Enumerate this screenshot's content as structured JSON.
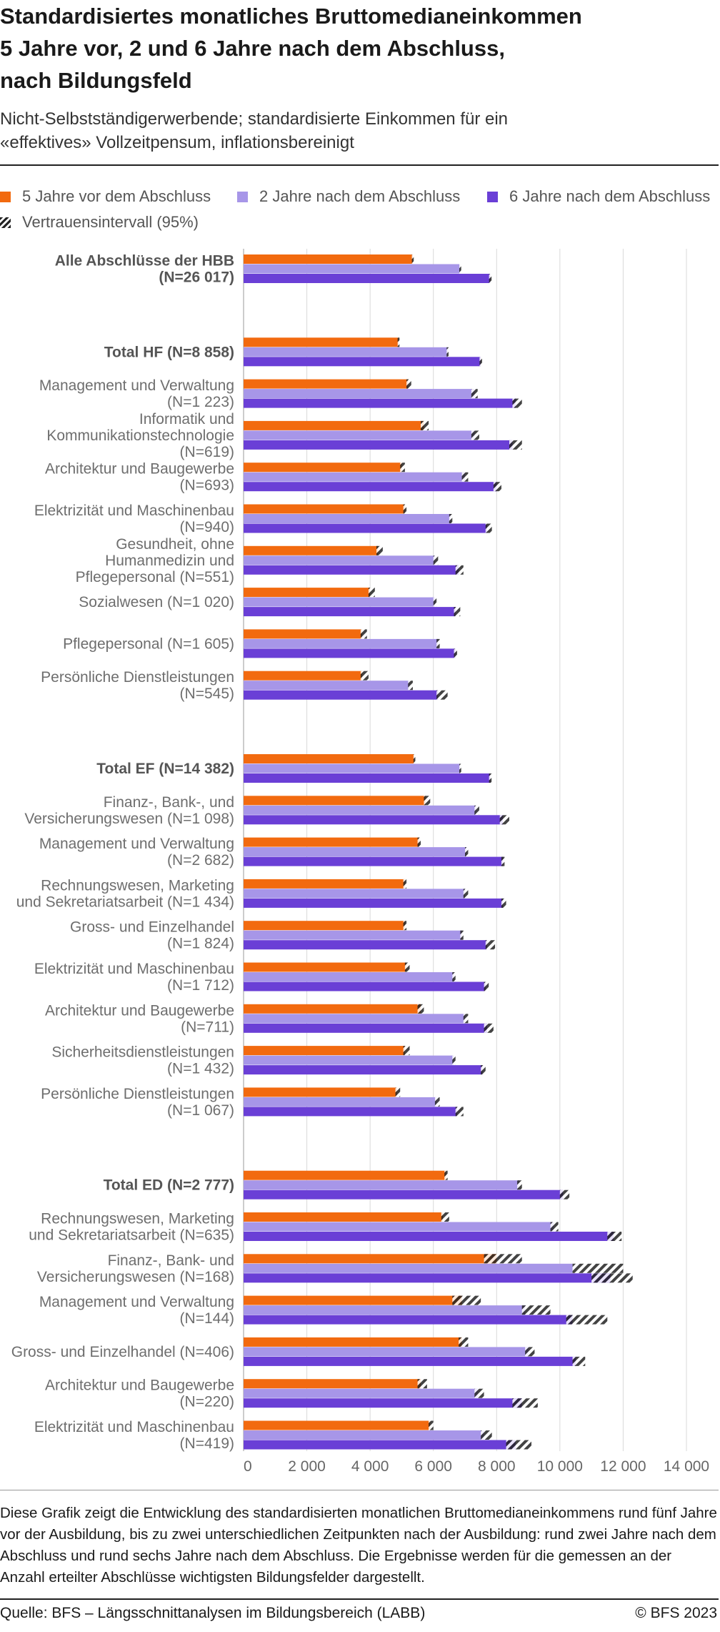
{
  "title": "Standardisiertes monatliches Bruttomedianeinkommen\n5 Jahre vor, 2 und 6 Jahre nach dem Abschluss,\nnach Bildungsfeld",
  "subtitle": "Nicht-Selbstständigerwerbende; standardisierte Einkommen für ein\n«effektives» Vollzeitpensum, inflationsbereinigt",
  "legend": {
    "s1": "5 Jahre vor dem Abschluss",
    "s2": "2 Jahre nach dem Abschluss",
    "s3": "6 Jahre nach dem Abschluss",
    "ci": "Vertrauensintervall (95%)"
  },
  "description": "Diese Grafik zeigt die Entwicklung des standardisierten monatlichen Bruttomedianeinkommens rund fünf Jahre vor der Ausbildung, bis zu zwei unterschiedlichen Zeitpunkten nach der Ausbildung: rund zwei Jahre nach dem Abschluss und rund sechs Jahre nach dem Abschluss. Die Ergebnisse werden für die gemessen an der Anzahl erteilter Abschlüsse wichtigsten Bildungsfelder dargestellt.",
  "source": "Quelle: BFS – Längsschnittanalysen im Bildungsbereich (LABB)",
  "copyright": "© BFS 2023",
  "colors": {
    "s1": "#f26a0f",
    "s2": "#a796e8",
    "s3": "#6a3fd6",
    "grid": "#d9d9d9",
    "label": "#6e6e6e",
    "label_bold": "#555555"
  },
  "chart_data": {
    "type": "bar",
    "orientation": "horizontal",
    "xlim": [
      0,
      14000
    ],
    "xticks": [
      "0",
      "2 000",
      "4 000",
      "6 000",
      "8 000",
      "10 000",
      "12 000",
      "14 000"
    ],
    "grid": true,
    "legend_position": "top",
    "series_names": [
      "5 Jahre vor dem Abschluss",
      "2 Jahre nach dem Abschluss",
      "6 Jahre nach dem Abschluss"
    ],
    "confidence_interval_label": "Vertrauensintervall (95%)",
    "groups": [
      {
        "label": "Alle Abschlüsse der HBB\n(N=26 017)",
        "bold": true,
        "values": [
          5350,
          6850,
          7800
        ],
        "ci": [
          [
            5320,
            5380
          ],
          [
            6820,
            6880
          ],
          [
            7760,
            7840
          ]
        ]
      },
      {
        "label": "Total HF (N=8 858)",
        "bold": true,
        "gap_before": true,
        "values": [
          4900,
          6450,
          7500
        ],
        "ci": [
          [
            4870,
            4930
          ],
          [
            6420,
            6480
          ],
          [
            7460,
            7540
          ]
        ]
      },
      {
        "label": "Management und Verwaltung\n(N=1 223)",
        "values": [
          5200,
          7300,
          8600
        ],
        "ci": [
          [
            5150,
            5300
          ],
          [
            7200,
            7400
          ],
          [
            8500,
            8800
          ]
        ]
      },
      {
        "label": "Informatik und\nKommunikationstechnologie\n(N=619)",
        "values": [
          5700,
          7300,
          8500
        ],
        "ci": [
          [
            5600,
            5850
          ],
          [
            7200,
            7450
          ],
          [
            8400,
            8800
          ]
        ]
      },
      {
        "label": "Architektur und Baugewerbe\n(N=693)",
        "values": [
          5000,
          7000,
          8000
        ],
        "ci": [
          [
            4950,
            5100
          ],
          [
            6900,
            7100
          ],
          [
            7900,
            8150
          ]
        ]
      },
      {
        "label": "Elektrizität und Maschinenbau\n(N=940)",
        "values": [
          5100,
          6550,
          7700
        ],
        "ci": [
          [
            5050,
            5150
          ],
          [
            6500,
            6600
          ],
          [
            7650,
            7850
          ]
        ]
      },
      {
        "label": "Gesundheit, ohne\nHumanmedizin und\nPflegepersonal (N=551)",
        "values": [
          4250,
          6050,
          6800
        ],
        "ci": [
          [
            4200,
            4400
          ],
          [
            6000,
            6150
          ],
          [
            6700,
            6950
          ]
        ]
      },
      {
        "label": "Sozialwesen (N=1 020)",
        "values": [
          4000,
          6050,
          6700
        ],
        "ci": [
          [
            3950,
            4150
          ],
          [
            6000,
            6100
          ],
          [
            6650,
            6850
          ]
        ]
      },
      {
        "label": "Pflegepersonal (N=1 605)",
        "values": [
          3750,
          6150,
          6700
        ],
        "ci": [
          [
            3700,
            3900
          ],
          [
            6100,
            6200
          ],
          [
            6650,
            6750
          ]
        ]
      },
      {
        "label": "Persönliche Dienstleistungen\n(N=545)",
        "values": [
          3750,
          5250,
          6150
        ],
        "ci": [
          [
            3700,
            3950
          ],
          [
            5200,
            5350
          ],
          [
            6100,
            6450
          ]
        ]
      },
      {
        "label": "Total EF (N=14 382)",
        "bold": true,
        "gap_before": true,
        "values": [
          5400,
          6850,
          7800
        ],
        "ci": [
          [
            5370,
            5430
          ],
          [
            6820,
            6880
          ],
          [
            7760,
            7840
          ]
        ]
      },
      {
        "label": "Finanz-, Bank-, und\nVersicherungswesen (N=1 098)",
        "values": [
          5750,
          7350,
          8200
        ],
        "ci": [
          [
            5700,
            5900
          ],
          [
            7300,
            7450
          ],
          [
            8100,
            8400
          ]
        ]
      },
      {
        "label": "Management und Verwaltung\n(N=2 682)",
        "values": [
          5550,
          7050,
          8200
        ],
        "ci": [
          [
            5500,
            5600
          ],
          [
            7000,
            7100
          ],
          [
            8150,
            8250
          ]
        ]
      },
      {
        "label": "Rechnungswesen, Marketing\nund Sekretariatsarbeit (N=1 434)",
        "values": [
          5100,
          7000,
          8200
        ],
        "ci": [
          [
            5050,
            5150
          ],
          [
            6950,
            7100
          ],
          [
            8150,
            8300
          ]
        ]
      },
      {
        "label": "Gross- und Einzelhandel\n(N=1 824)",
        "values": [
          5100,
          6900,
          7700
        ],
        "ci": [
          [
            5050,
            5150
          ],
          [
            6850,
            6950
          ],
          [
            7650,
            7950
          ]
        ]
      },
      {
        "label": "Elektrizität und Maschinenbau\n(N=1 712)",
        "values": [
          5150,
          6650,
          7650
        ],
        "ci": [
          [
            5100,
            5250
          ],
          [
            6600,
            6700
          ],
          [
            7600,
            7750
          ]
        ]
      },
      {
        "label": "Architektur und Baugewerbe\n(N=711)",
        "values": [
          5600,
          7000,
          7700
        ],
        "ci": [
          [
            5500,
            5700
          ],
          [
            6950,
            7100
          ],
          [
            7600,
            7900
          ]
        ]
      },
      {
        "label": "Sicherheitsdienstleistungen\n(N=1 432)",
        "values": [
          5100,
          6650,
          7550
        ],
        "ci": [
          [
            5050,
            5250
          ],
          [
            6600,
            6700
          ],
          [
            7500,
            7650
          ]
        ]
      },
      {
        "label": "Persönliche Dienstleistungen\n(N=1 067)",
        "values": [
          4850,
          6100,
          6750
        ],
        "ci": [
          [
            4800,
            4950
          ],
          [
            6050,
            6200
          ],
          [
            6700,
            6950
          ]
        ]
      },
      {
        "label": "Total ED (N=2 777)",
        "bold": true,
        "gap_before": true,
        "values": [
          6400,
          8700,
          10100
        ],
        "ci": [
          [
            6350,
            6450
          ],
          [
            8650,
            8800
          ],
          [
            10000,
            10300
          ]
        ]
      },
      {
        "label": "Rechnungswesen, Marketing\nund Sekretariatsarbeit (N=635)",
        "values": [
          6300,
          9800,
          11700
        ],
        "ci": [
          [
            6250,
            6500
          ],
          [
            9700,
            9950
          ],
          [
            11500,
            11950
          ]
        ]
      },
      {
        "label": "Finanz-, Bank- und\nVersicherungswesen (N=168)",
        "values": [
          8000,
          10400,
          11600
        ],
        "ci": [
          [
            7600,
            8800
          ],
          [
            10400,
            12000
          ],
          [
            11000,
            12300
          ]
        ]
      },
      {
        "label": "Management und Verwaltung\n(N=144)",
        "values": [
          6900,
          8900,
          10400
        ],
        "ci": [
          [
            6600,
            7500
          ],
          [
            8800,
            9700
          ],
          [
            10200,
            11500
          ]
        ]
      },
      {
        "label": "Gross- und Einzelhandel (N=406)",
        "values": [
          6900,
          9000,
          10500
        ],
        "ci": [
          [
            6800,
            7100
          ],
          [
            8900,
            9200
          ],
          [
            10400,
            10800
          ]
        ]
      },
      {
        "label": "Architektur und Baugewerbe\n(N=220)",
        "values": [
          5600,
          7400,
          8800
        ],
        "ci": [
          [
            5500,
            5800
          ],
          [
            7300,
            7600
          ],
          [
            8500,
            9300
          ]
        ]
      },
      {
        "label": "Elektrizität und Maschinenbau\n(N=419)",
        "values": [
          5900,
          7600,
          8600
        ],
        "ci": [
          [
            5850,
            6000
          ],
          [
            7500,
            7850
          ],
          [
            8300,
            9100
          ]
        ]
      }
    ]
  }
}
